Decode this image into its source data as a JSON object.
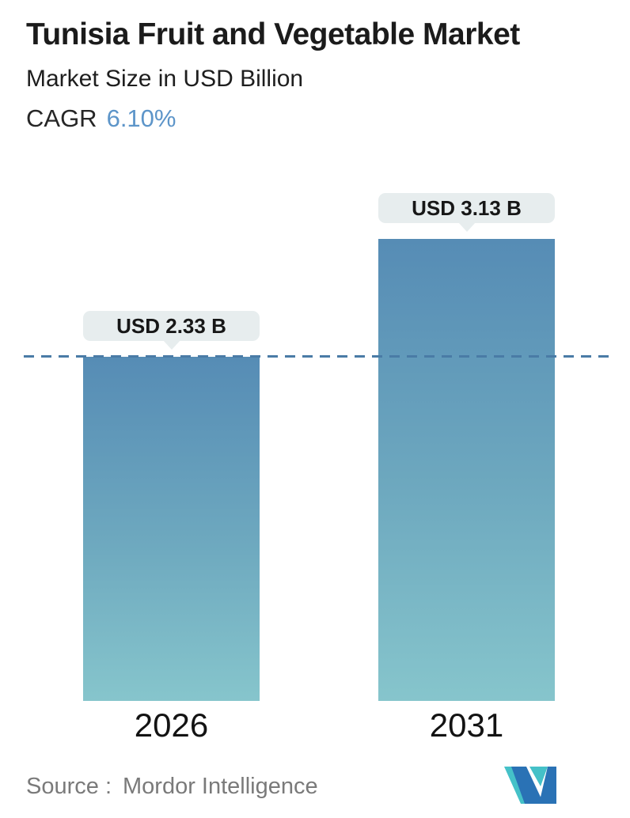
{
  "header": {
    "title": "Tunisia Fruit and Vegetable Market",
    "subtitle": "Market Size in USD Billion",
    "cagr_label": "CAGR",
    "cagr_value": "6.10%"
  },
  "chart_data": {
    "type": "bar",
    "title": "Tunisia Fruit and Vegetable Market",
    "subtitle": "Market Size in USD Billion",
    "unit": "USD Billion",
    "categories": [
      "2026",
      "2031"
    ],
    "values": [
      2.33,
      3.13
    ],
    "value_labels": [
      "USD 2.33 B",
      "USD 3.13 B"
    ],
    "cagr_percent": "6.10%",
    "ylim": [
      0,
      3.4
    ],
    "grid": false,
    "legend": "none",
    "annotations": {
      "dashed_reference_line_at_value": 2.33
    },
    "colors": {
      "bar_gradient_top": "#568cb5",
      "bar_gradient_bottom": "#86c5cc",
      "dashed_line": "#4a7ba6",
      "callout_background": "#e7edee",
      "cagr_value_color": "#5d95c9"
    }
  },
  "footer": {
    "source_label": "Source :",
    "source_value": "Mordor Intelligence",
    "logo_name": "mordor-intelligence-logo",
    "logo_colors": {
      "teal": "#45c1c8",
      "blue": "#2a72b5"
    }
  }
}
